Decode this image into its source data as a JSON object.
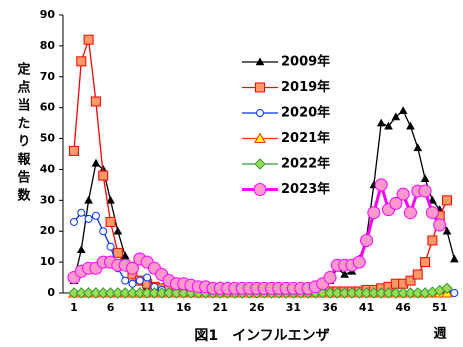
{
  "chart_data": {
    "type": "line",
    "title": "図1　インフルエンザ",
    "x_label": "週",
    "y_label": "定点当たり報告数",
    "x": [
      1,
      2,
      3,
      4,
      5,
      6,
      7,
      8,
      9,
      10,
      11,
      12,
      13,
      14,
      15,
      16,
      17,
      18,
      19,
      20,
      21,
      22,
      23,
      24,
      25,
      26,
      27,
      28,
      29,
      30,
      31,
      32,
      33,
      34,
      35,
      36,
      37,
      38,
      39,
      40,
      41,
      42,
      43,
      44,
      45,
      46,
      47,
      48,
      49,
      50,
      51,
      52,
      53
    ],
    "xlim": [
      -0.5,
      53.5
    ],
    "xticks": [
      1,
      6,
      11,
      16,
      21,
      26,
      31,
      36,
      41,
      46,
      51
    ],
    "ylim": [
      0,
      90
    ],
    "yticks": [
      0,
      10,
      20,
      30,
      40,
      50,
      60,
      70,
      80,
      90
    ],
    "series": [
      {
        "name": "2009年",
        "color": "#000000",
        "fill": "#000000",
        "marker": "triangle",
        "size": 3.5,
        "values": [
          4,
          14,
          30,
          42,
          40,
          30,
          20,
          12,
          7,
          4,
          2,
          1,
          1,
          0.5,
          0.5,
          0.3,
          0.3,
          0.2,
          0.2,
          0.2,
          0.2,
          0.2,
          0.2,
          0.2,
          0.2,
          0.2,
          0.3,
          0.5,
          0.5,
          0.5,
          0.5,
          0.5,
          0.8,
          1,
          2,
          4,
          8,
          6,
          7,
          11,
          18,
          35,
          55,
          54,
          57,
          59,
          54,
          47,
          37,
          30,
          27,
          20,
          11
        ]
      },
      {
        "name": "2019年",
        "color": "#ff0000",
        "fill": "#ff9966",
        "marker": "square",
        "size": 4.5,
        "values": [
          46,
          75,
          82,
          62,
          38,
          23,
          13,
          9,
          6,
          4,
          3,
          2,
          1.5,
          1,
          1,
          0.5,
          0.5,
          0.5,
          0.5,
          0.5,
          0.5,
          0.5,
          0.5,
          0.5,
          0.5,
          0.5,
          0.5,
          0.5,
          0.5,
          0.5,
          0.5,
          0.5,
          0.5,
          0.5,
          0.5,
          0.5,
          0.5,
          0.5,
          0.5,
          0.5,
          1,
          1,
          1.5,
          2,
          3,
          3,
          4,
          6,
          10,
          17,
          25,
          30,
          null
        ]
      },
      {
        "name": "2020年",
        "color": "#0033ff",
        "fill": "#ffffff",
        "marker": "circle",
        "size": 3.5,
        "values": [
          23,
          26,
          24,
          25,
          20,
          15,
          8,
          4,
          3,
          4,
          5,
          2,
          1,
          0,
          0,
          0,
          0,
          0,
          0,
          0,
          0,
          0,
          0,
          0,
          0,
          0,
          0,
          0,
          0,
          0,
          0,
          0,
          0,
          0,
          0,
          0,
          0,
          0,
          0,
          0,
          0,
          0,
          0,
          0,
          0,
          0,
          0,
          0,
          0,
          0,
          0,
          0,
          0
        ]
      },
      {
        "name": "2021年",
        "color": "#ff3300",
        "fill": "#ffff00",
        "marker": "triangle",
        "size": 5,
        "values": [
          0,
          0,
          0,
          0,
          0,
          0,
          0,
          0,
          0,
          0,
          0,
          0,
          0,
          0,
          0,
          0,
          0,
          0,
          0,
          0,
          0,
          0,
          0,
          0,
          0,
          0,
          0,
          0,
          0,
          0,
          0,
          0,
          0,
          0,
          0,
          0,
          0,
          0,
          0,
          0,
          0,
          0,
          0,
          0,
          0,
          0,
          0,
          0,
          0,
          0,
          0,
          0,
          null
        ]
      },
      {
        "name": "2022年",
        "color": "#339933",
        "fill": "#99dd55",
        "marker": "diamond",
        "size": 5,
        "values": [
          0,
          0,
          0,
          0,
          0,
          0,
          0,
          0,
          0,
          0,
          0,
          0,
          0,
          0,
          0,
          0,
          0,
          0,
          0,
          0,
          0,
          0,
          0,
          0,
          0,
          0,
          0,
          0,
          0,
          0,
          0,
          0,
          0,
          0,
          0,
          0,
          0,
          0,
          0,
          0,
          0,
          0,
          0,
          0,
          0,
          0,
          0,
          0,
          0,
          0.3,
          0.8,
          1.5,
          null
        ]
      },
      {
        "name": "2023年",
        "color": "#ff00ff",
        "fill": "#ff99cc",
        "marker": "circle",
        "size": 6,
        "values": [
          5,
          7,
          8,
          8,
          10,
          10,
          9,
          9,
          8,
          11,
          10,
          8,
          6,
          4,
          3,
          3,
          2.5,
          2,
          2,
          1.5,
          1.5,
          1.5,
          1.5,
          1.5,
          1.5,
          1.5,
          1.5,
          1.5,
          1.5,
          1.5,
          1.5,
          1.5,
          1.5,
          2,
          3,
          5,
          9,
          9,
          9,
          10,
          17,
          26,
          35,
          27,
          29,
          32,
          26,
          33,
          33,
          26,
          22,
          null,
          null
        ]
      }
    ]
  }
}
